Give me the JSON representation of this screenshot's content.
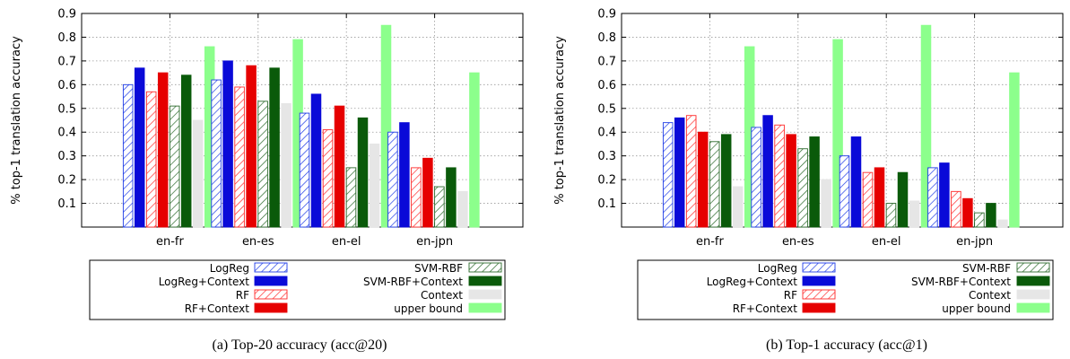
{
  "chart_data": [
    {
      "type": "bar",
      "caption": "(a) Top-20 accuracy (acc@20)",
      "ylabel": "% top-1 translation accuracy",
      "ylim": [
        0,
        0.9
      ],
      "yticks": [
        "0.1",
        "0.2",
        "0.3",
        "0.4",
        "0.5",
        "0.6",
        "0.7",
        "0.8",
        "0.9"
      ],
      "grid": true,
      "legend_position": "bottom",
      "categories": [
        "en-fr",
        "en-es",
        "en-el",
        "en-jpn"
      ],
      "series": [
        {
          "name": "LogReg",
          "values": [
            0.6,
            0.62,
            0.48,
            0.4
          ]
        },
        {
          "name": "LogReg+Context",
          "values": [
            0.67,
            0.7,
            0.56,
            0.44
          ]
        },
        {
          "name": "RF",
          "values": [
            0.57,
            0.59,
            0.41,
            0.25
          ]
        },
        {
          "name": "RF+Context",
          "values": [
            0.65,
            0.68,
            0.51,
            0.29
          ]
        },
        {
          "name": "SVM-RBF",
          "values": [
            0.51,
            0.53,
            0.25,
            0.17
          ]
        },
        {
          "name": "SVM-RBF+Context",
          "values": [
            0.64,
            0.67,
            0.46,
            0.25
          ]
        },
        {
          "name": "Context",
          "values": [
            0.45,
            0.52,
            0.35,
            0.15
          ]
        },
        {
          "name": "upper bound",
          "values": [
            0.76,
            0.79,
            0.85,
            0.65
          ]
        }
      ]
    },
    {
      "type": "bar",
      "caption": "(b) Top-1 accuracy (acc@1)",
      "ylabel": "% top-1 translation accuracy",
      "ylim": [
        0,
        0.9
      ],
      "yticks": [
        "0.1",
        "0.2",
        "0.3",
        "0.4",
        "0.5",
        "0.6",
        "0.7",
        "0.8",
        "0.9"
      ],
      "grid": true,
      "legend_position": "bottom",
      "categories": [
        "en-fr",
        "en-es",
        "en-el",
        "en-jpn"
      ],
      "series": [
        {
          "name": "LogReg",
          "values": [
            0.44,
            0.42,
            0.3,
            0.25
          ]
        },
        {
          "name": "LogReg+Context",
          "values": [
            0.46,
            0.47,
            0.38,
            0.27
          ]
        },
        {
          "name": "RF",
          "values": [
            0.47,
            0.43,
            0.23,
            0.15
          ]
        },
        {
          "name": "RF+Context",
          "values": [
            0.4,
            0.39,
            0.25,
            0.12
          ]
        },
        {
          "name": "SVM-RBF",
          "values": [
            0.36,
            0.33,
            0.1,
            0.06
          ]
        },
        {
          "name": "SVM-RBF+Context",
          "values": [
            0.39,
            0.38,
            0.23,
            0.1
          ]
        },
        {
          "name": "Context",
          "values": [
            0.17,
            0.2,
            0.11,
            0.03
          ]
        },
        {
          "name": "upper bound",
          "values": [
            0.76,
            0.79,
            0.85,
            0.65
          ]
        }
      ]
    }
  ],
  "styles": [
    {
      "color": "#1f3ce6",
      "fill": "hatch"
    },
    {
      "color": "#0a0ad8",
      "fill": "solid"
    },
    {
      "color": "#ff2a2a",
      "fill": "hatch"
    },
    {
      "color": "#e60000",
      "fill": "solid"
    },
    {
      "color": "#2c6a2c",
      "fill": "hatch"
    },
    {
      "color": "#0a5a0a",
      "fill": "solid"
    },
    {
      "color": "#e6e6e6",
      "fill": "solid"
    },
    {
      "color": "#8cff8c",
      "fill": "solid"
    }
  ]
}
